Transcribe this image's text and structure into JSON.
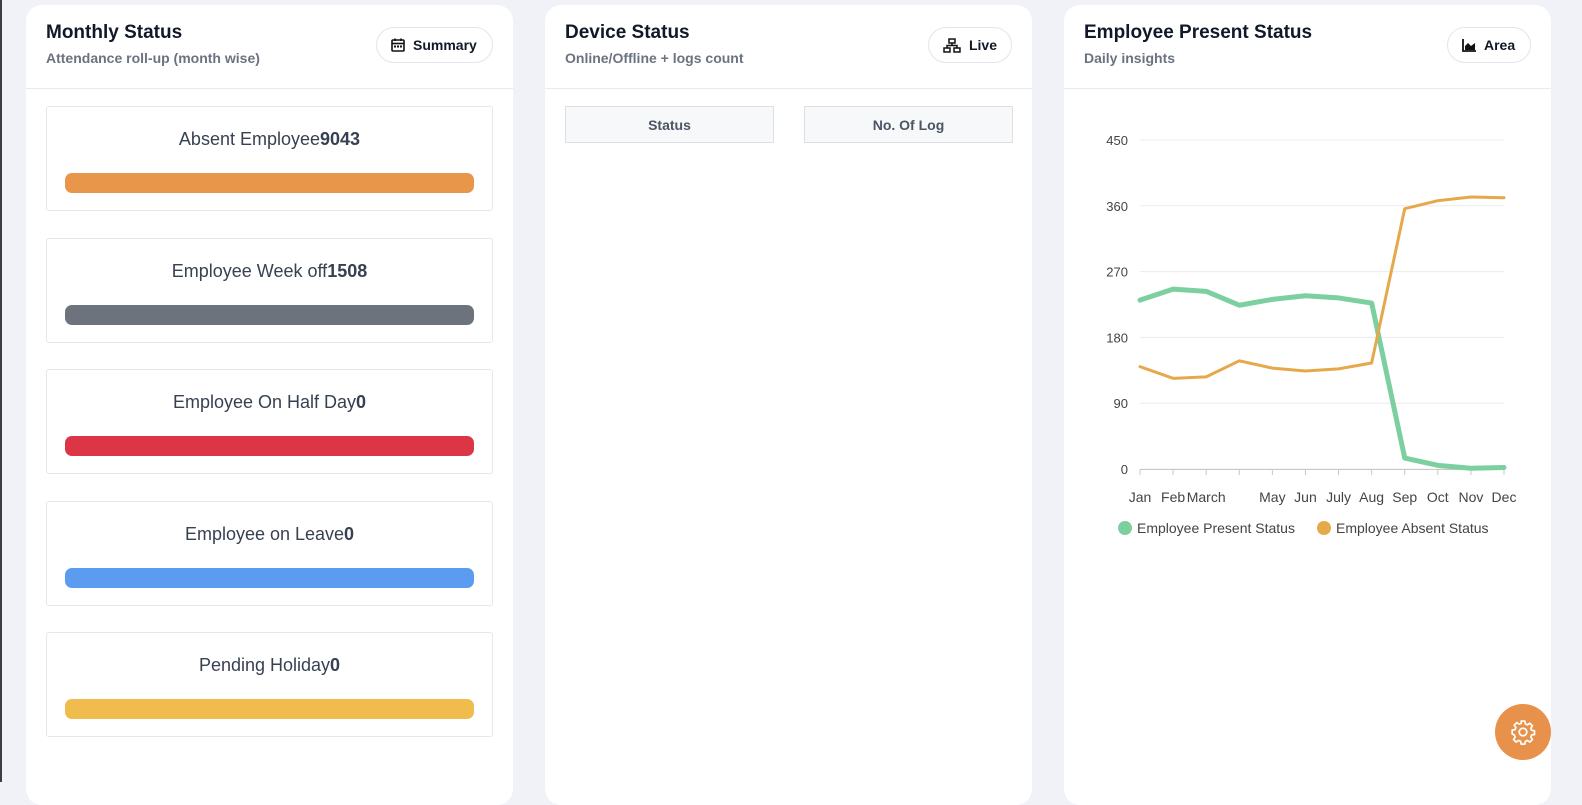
{
  "monthly_status": {
    "title": "Monthly Status",
    "subtitle": "Attendance roll-up (month wise)",
    "button": "Summary",
    "items": [
      {
        "label": "Absent Employee",
        "value": 9043,
        "color": "#e8964a"
      },
      {
        "label": "Employee Week off",
        "value": 1508,
        "color": "#6c737c"
      },
      {
        "label": "Employee On Half Day",
        "value": 0,
        "color": "#dc3545"
      },
      {
        "label": "Employee on Leave",
        "value": 0,
        "color": "#5b9cf0"
      },
      {
        "label": "Pending Holiday",
        "value": 0,
        "color": "#f0bc4e"
      }
    ]
  },
  "device_status": {
    "title": "Device Status",
    "subtitle": "Online/Offline + logs count",
    "button": "Live",
    "columns": [
      "Status",
      "No. Of Log"
    ]
  },
  "chart_data": {
    "type": "line",
    "title": "Employee Present Status",
    "subtitle": "Daily insights",
    "button": "Area",
    "categories": [
      "Jan",
      "Feb",
      "March",
      null,
      "May",
      "Jun",
      "July",
      "Aug",
      "Sep",
      "Oct",
      "Nov",
      "Dec"
    ],
    "series": [
      {
        "name": "Employee Present Status",
        "color": "#7ccf9f",
        "values": [
          231,
          246,
          243,
          224,
          232,
          237,
          234,
          227,
          15,
          5,
          1,
          2
        ]
      },
      {
        "name": "Employee Absent Status",
        "color": "#e6a84a",
        "values": [
          140,
          124,
          126,
          148,
          138,
          134,
          137,
          145,
          356,
          367,
          372,
          371
        ]
      }
    ],
    "ylim": [
      0,
      450
    ],
    "yticks": [
      0,
      90,
      180,
      270,
      360,
      450
    ],
    "grid": true
  }
}
